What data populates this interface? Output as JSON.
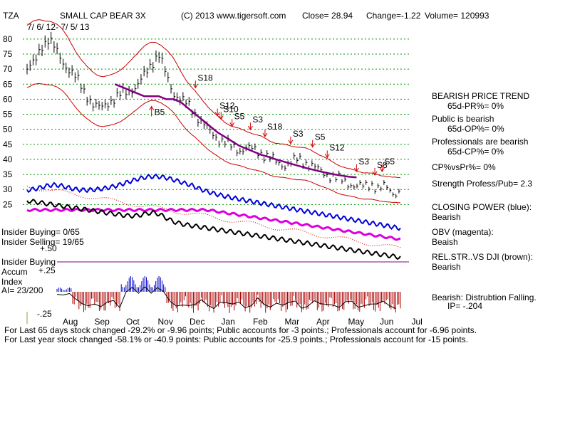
{
  "header": {
    "symbol": "TZA",
    "name": "SMALL CAP BEAR 3X",
    "copyright": "(C) 2013 www.tigersoft.com",
    "close": "Close=  28.94",
    "change": "Change=-1.22",
    "volume": "Volume= 120993",
    "date_range": "7/ 6/ 12- 7/ 5/ 13"
  },
  "right_panel": {
    "trend_title": "BEARISH PRICE TREND",
    "pr": "65d-PR%= 0%",
    "public_title": "Public is bearish",
    "op": "65d-OP%= 0%",
    "pro_title": "Professionals are bearish",
    "cp": "65d-CP%= 0%",
    "cp_vs_pr": "CP%vsPr%=  0%",
    "strength": "Strength Profess/Pub= 2.3",
    "closing_power_title": "CLOSING POWER (blue):",
    "closing_power_value": "Bearish",
    "obv_title": "OBV (magenta):",
    "obv_value": "Beaish",
    "relstr_title": "REL.STR..VS DJI (brown):",
    "relstr_value": "Bearish",
    "accum_title": "Bearish: Distrubtion Falling.",
    "ip": "IP= -.204"
  },
  "left_panel": {
    "insider_buying": "Insider Buying= 0/65",
    "insider_selling": "Insider Selling= 19/65",
    "insider_label": "Insider Buying",
    "accum_line1": "Accum",
    "accum_line2": "Index",
    "ai": "AI= 23/200"
  },
  "footer": {
    "line1": "For Last 65 days stock changed -29.2% or -9.96 points;  Public accounts for -3 points.;  Professionals account for -6.96 points.",
    "line2": "For Last year stock changed -58.1% or -40.9 points:  Public accounts for -25.9 points.;  Professionals account for -15 points."
  },
  "chart_data": {
    "type": "line",
    "title": "SMALL CAP BEAR 3X",
    "ylim": [
      22,
      84
    ],
    "y_ticks": [
      80,
      75,
      70,
      65,
      60,
      55,
      50,
      45,
      40,
      35,
      30,
      25
    ],
    "months": [
      "Aug",
      "Sep",
      "Oct",
      "Nov",
      "Dec",
      "Jan",
      "Feb",
      "Mar",
      "Apr",
      "May",
      "Jun",
      "Jul"
    ],
    "accum_ticks": [
      "+.50",
      "+.25",
      "-.25"
    ],
    "price_weeks": [
      70,
      72,
      78,
      80,
      76,
      72,
      69,
      66,
      62,
      58,
      57,
      59,
      60,
      62,
      63,
      64,
      68,
      72,
      75,
      68,
      62,
      60,
      58,
      55,
      52,
      49,
      47,
      46,
      44,
      43,
      44,
      43,
      42,
      41,
      39,
      38,
      39,
      40,
      39,
      38,
      36,
      35,
      34,
      33,
      32,
      31,
      31,
      32,
      30,
      31,
      29,
      28.9
    ],
    "ma_weeks": [
      null,
      null,
      null,
      null,
      null,
      null,
      null,
      null,
      null,
      null,
      null,
      null,
      65,
      64,
      63,
      62,
      61,
      61,
      61,
      60,
      60,
      59,
      57,
      55,
      53,
      51,
      49,
      47.5,
      46,
      44.5,
      43.5,
      42.5,
      41.5,
      40.8,
      40,
      39.3,
      38.6,
      37.9,
      37.2,
      36.6,
      36,
      35.5,
      35,
      34.6,
      34.2,
      34
    ],
    "signals": [
      {
        "label": "B5",
        "week": 17,
        "dir": "up"
      },
      {
        "label": "S18",
        "week": 23,
        "dir": "down"
      },
      {
        "label": "S12",
        "week": 26,
        "dir": "down"
      },
      {
        "label": "S10",
        "week": 26.5,
        "dir": "down"
      },
      {
        "label": "S5",
        "week": 28,
        "dir": "down"
      },
      {
        "label": "S3",
        "week": 30.5,
        "dir": "down"
      },
      {
        "label": "S18",
        "week": 32.5,
        "dir": "down"
      },
      {
        "label": "S3",
        "week": 36,
        "dir": "down"
      },
      {
        "label": "S5",
        "week": 39,
        "dir": "down"
      },
      {
        "label": "S12",
        "week": 41,
        "dir": "down"
      },
      {
        "label": "S3",
        "week": 45,
        "dir": "down"
      },
      {
        "label": "S8",
        "week": 47.5,
        "dir": "down"
      },
      {
        "label": "S5",
        "week": 48.5,
        "dir": "down"
      }
    ]
  }
}
